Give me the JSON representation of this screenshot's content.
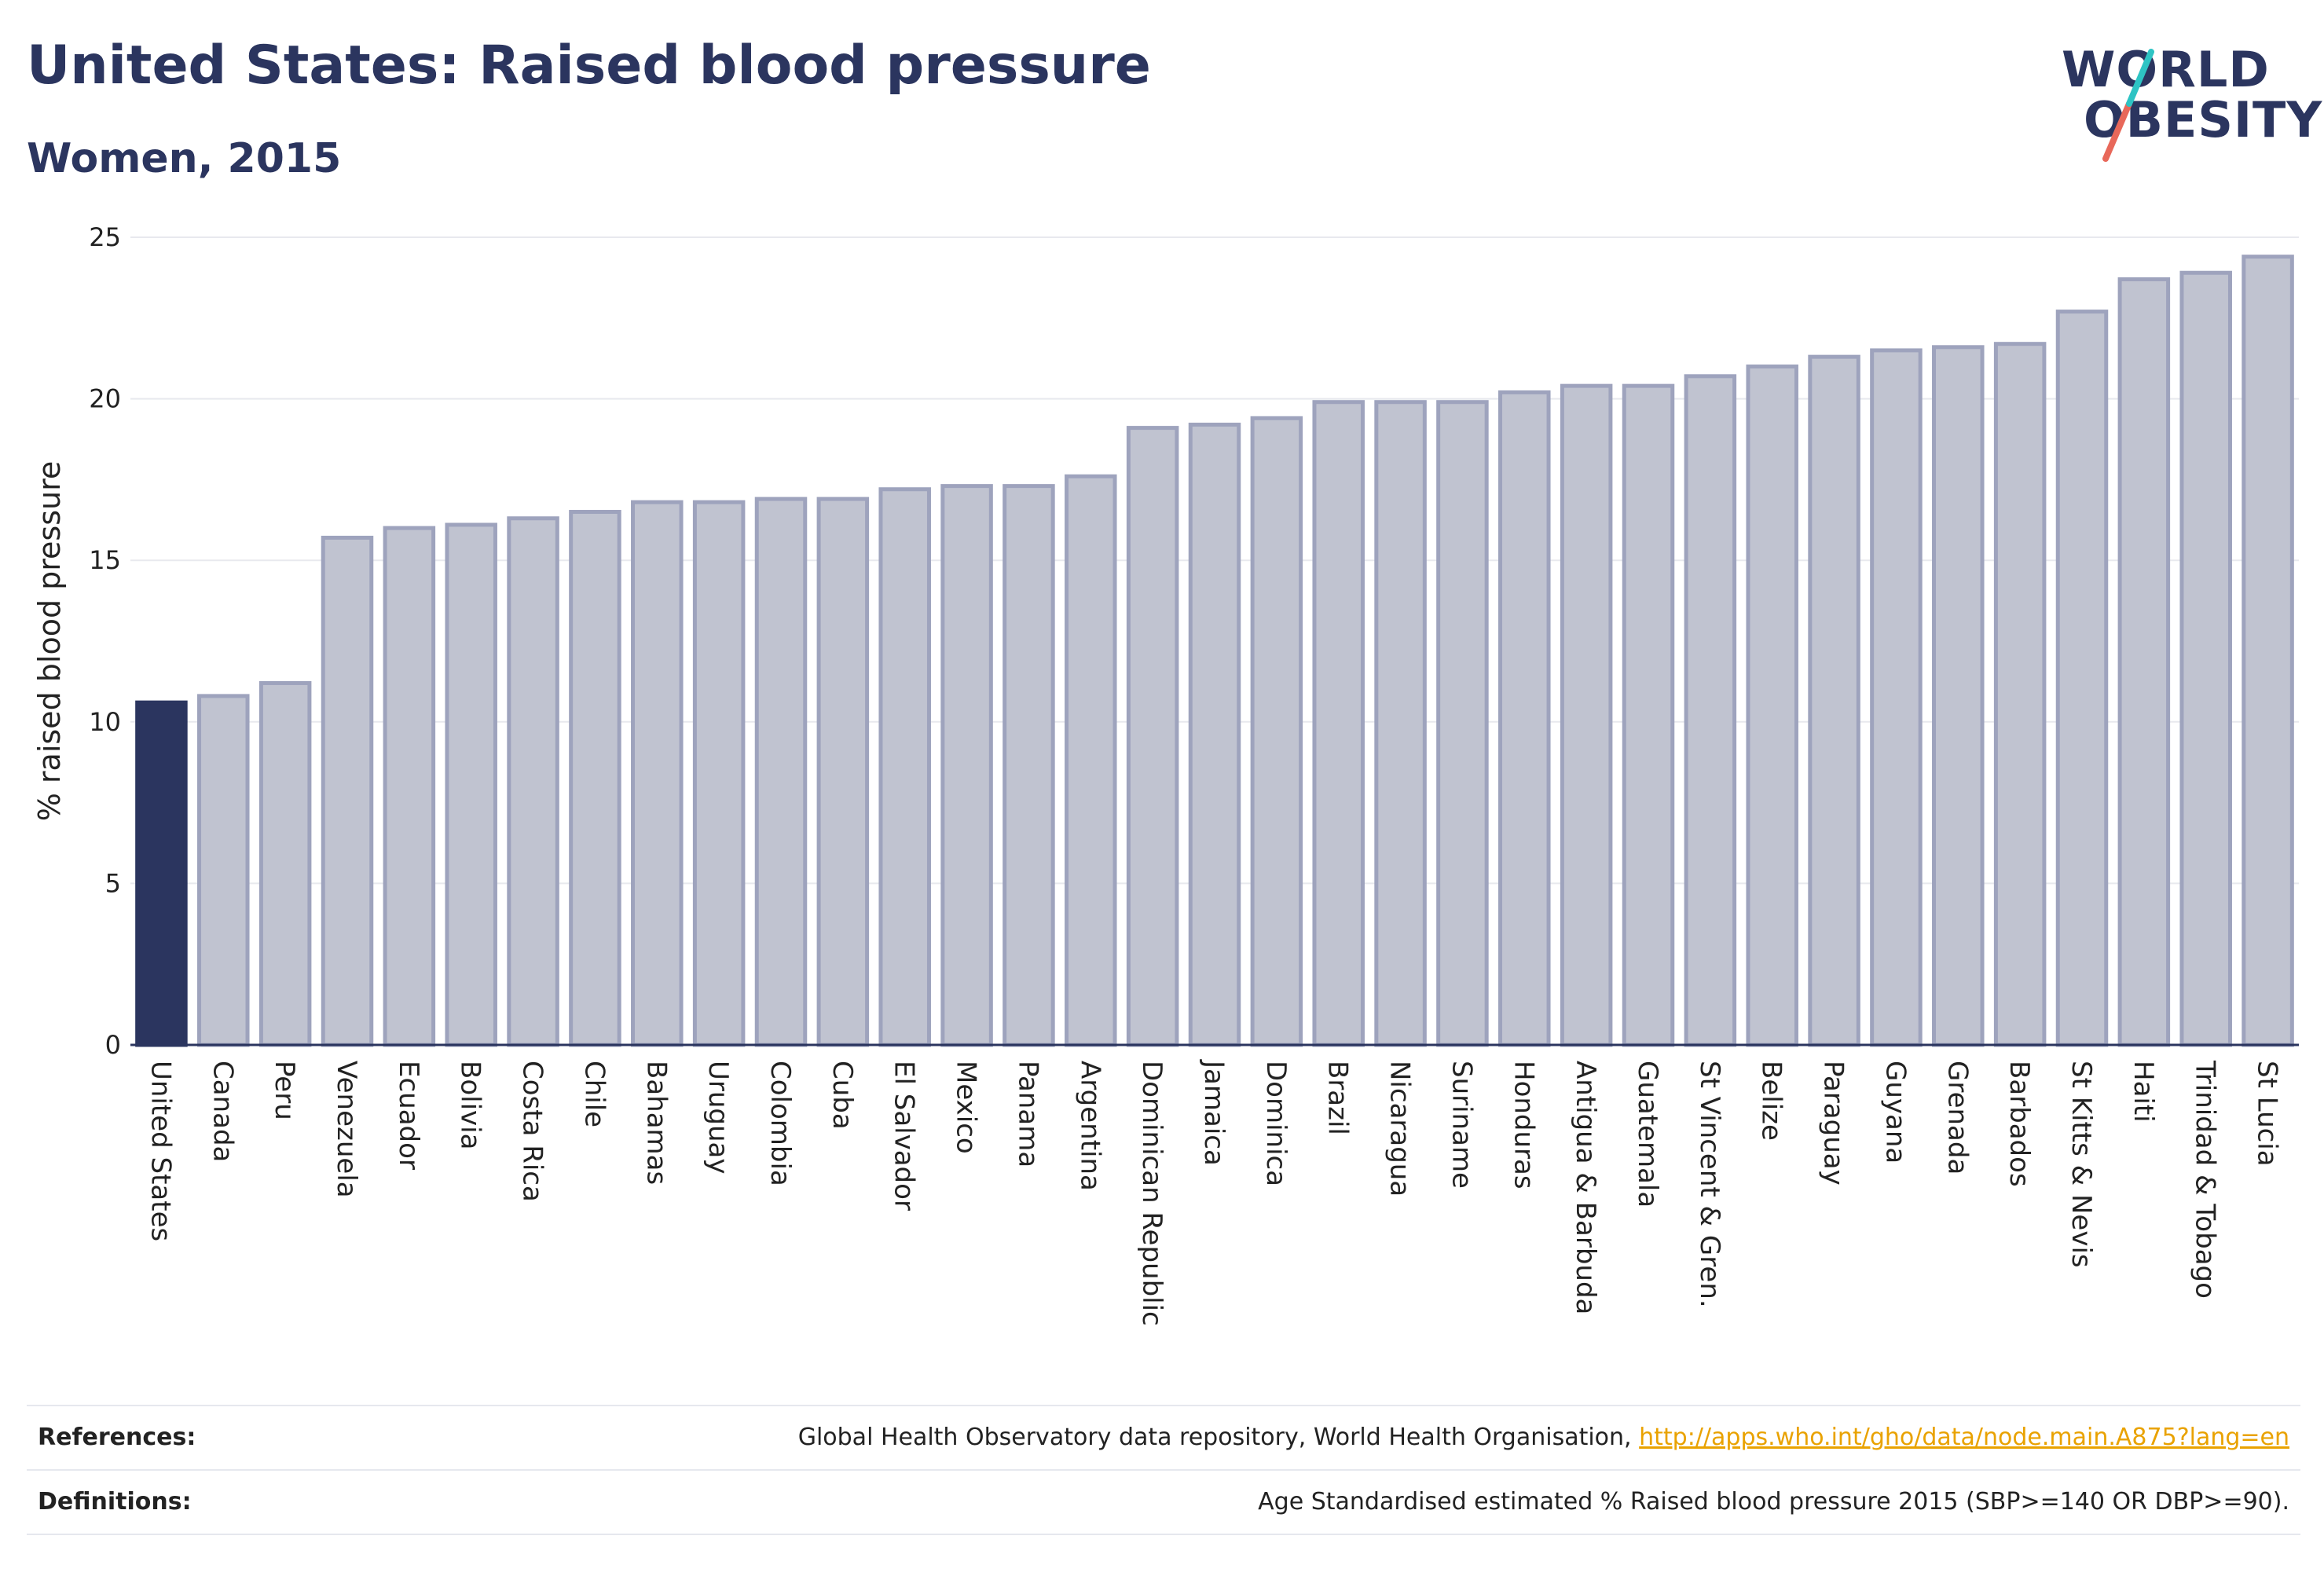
{
  "title": "United States: Raised blood pressure",
  "subtitle": "Women, 2015",
  "logo": {
    "line1": "WORLD",
    "line2": "OBESITY"
  },
  "colors": {
    "highlight": "#2b355f",
    "bar": "#c0c3d0",
    "bar_border": "#9ea3bd",
    "grid": "#e8e9ee",
    "text": "#2b355f",
    "link": "#e9a200"
  },
  "chart_data": {
    "type": "bar",
    "ylabel": "% raised blood pressure",
    "ylim": [
      0,
      25
    ],
    "yticks": [
      0,
      5,
      10,
      15,
      20,
      25
    ],
    "grid": true,
    "highlight": "United States",
    "categories": [
      "United States",
      "Canada",
      "Peru",
      "Venezuela",
      "Ecuador",
      "Bolivia",
      "Costa Rica",
      "Chile",
      "Bahamas",
      "Uruguay",
      "Colombia",
      "Cuba",
      "El Salvador",
      "Mexico",
      "Panama",
      "Argentina",
      "Dominican Republic",
      "Jamaica",
      "Dominica",
      "Brazil",
      "Nicaragua",
      "Suriname",
      "Honduras",
      "Antigua & Barbuda",
      "Guatemala",
      "St Vincent & Gren.",
      "Belize",
      "Paraguay",
      "Guyana",
      "Grenada",
      "Barbados",
      "St Kitts & Nevis",
      "Haiti",
      "Trinidad & Tobago",
      "St Lucia"
    ],
    "values": [
      10.6,
      10.8,
      11.2,
      15.7,
      16.0,
      16.1,
      16.3,
      16.5,
      16.8,
      16.8,
      16.9,
      16.9,
      17.2,
      17.3,
      17.3,
      17.6,
      19.1,
      19.2,
      19.4,
      19.9,
      19.9,
      19.9,
      20.2,
      20.4,
      20.4,
      20.7,
      21.0,
      21.3,
      21.5,
      21.6,
      21.7,
      22.7,
      23.7,
      23.9,
      24.4
    ]
  },
  "footer": {
    "references_label": "References:",
    "references_text": "Global Health Observatory data repository, World Health Organisation,",
    "references_link": "http://apps.who.int/gho/data/node.main.A875?lang=en",
    "definitions_label": "Definitions:",
    "definitions_text": "Age Standardised estimated % Raised blood pressure 2015 (SBP>=140 OR DBP>=90)."
  }
}
